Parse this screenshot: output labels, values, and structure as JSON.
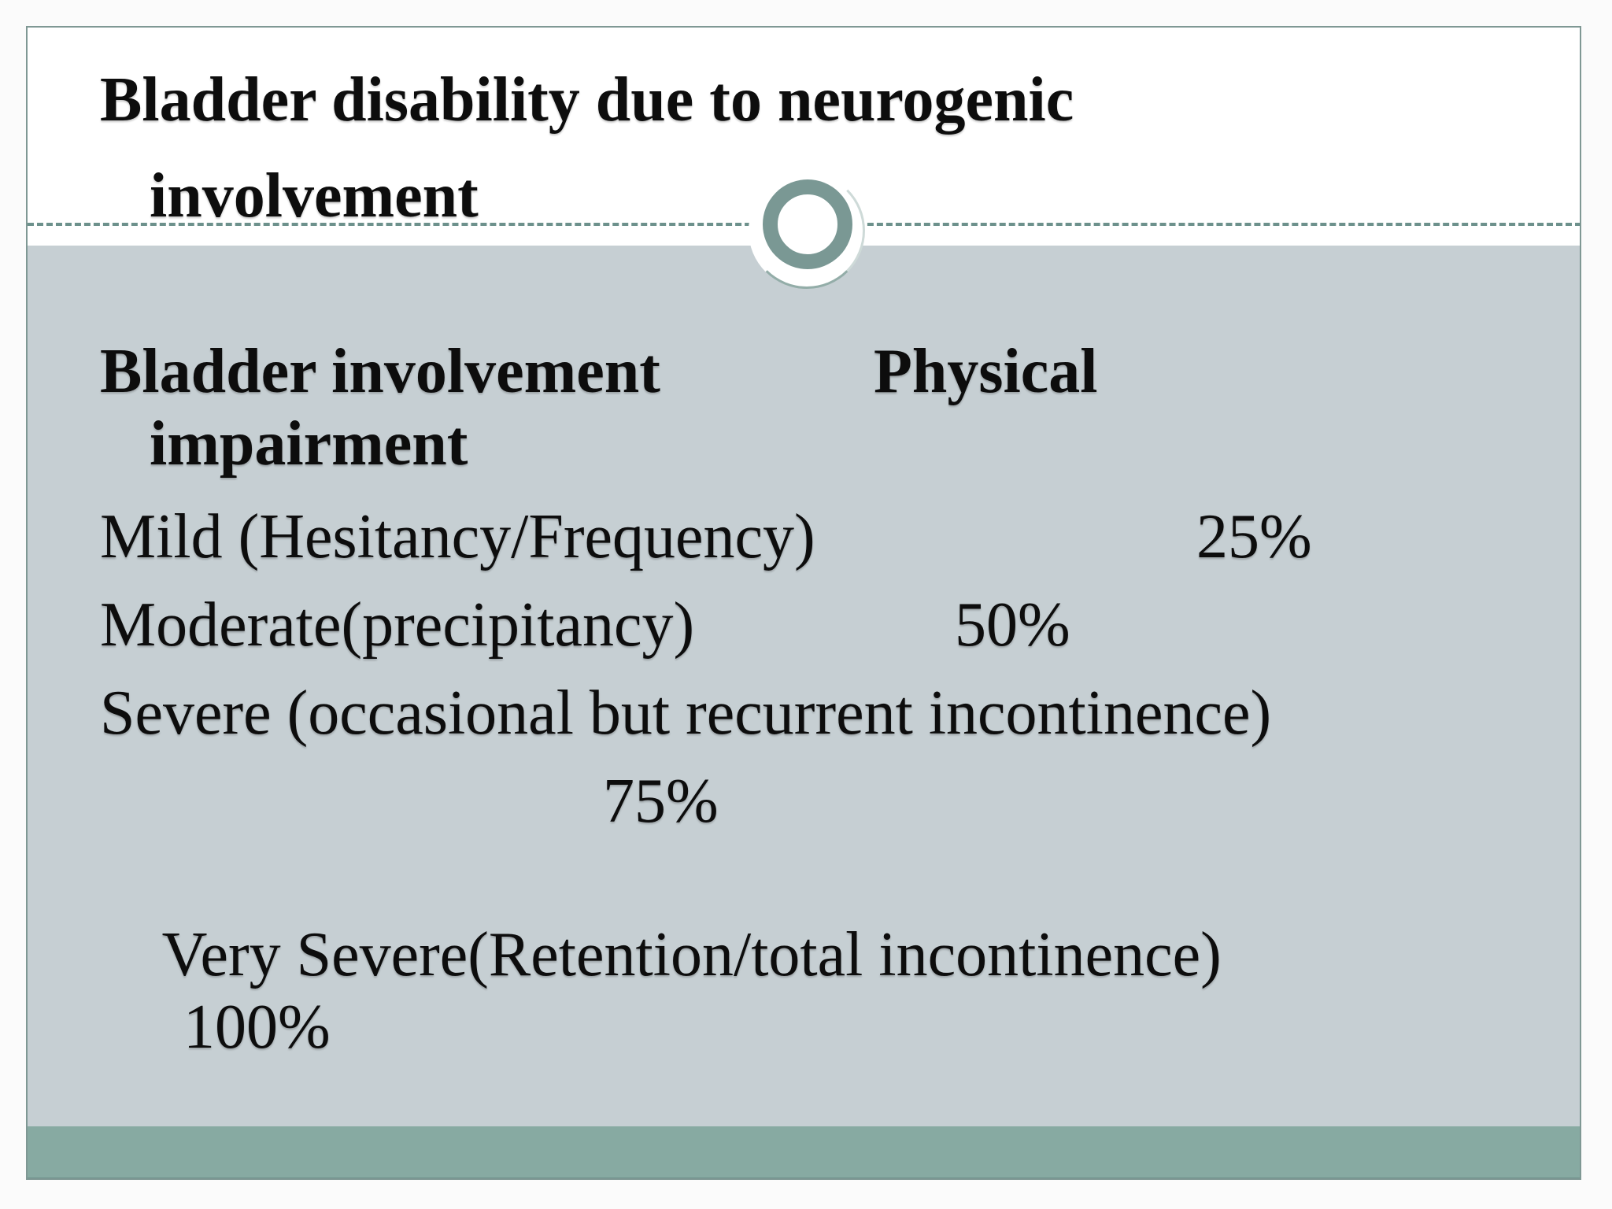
{
  "slide": {
    "title": {
      "line1": "Bladder disability due to neurogenic",
      "line2": "involvement"
    },
    "body": {
      "heading": {
        "column1": "Bladder involvement",
        "column2": "Physical",
        "line2": "impairment"
      },
      "rows": [
        {
          "label": "Mild (Hesitancy/Frequency)",
          "value": "25%"
        },
        {
          "label": "Moderate(precipitancy)",
          "value": "50%"
        },
        {
          "label": "Severe (occasional but recurrent incontinence)",
          "value": "75%"
        },
        {
          "label": "Very Severe(Retention/total incontinence)",
          "value": "100%"
        }
      ]
    },
    "decorations": {
      "divider_circle_icon": "ring-circle-icon",
      "colors": {
        "content_background": "#c6cfd3",
        "footer_bar": "#87aaa2",
        "circle_ring": "#7a9894",
        "dashed_line": "#6d918c",
        "slide_border": "#7f9894",
        "text": "#0d0d0d"
      }
    }
  }
}
